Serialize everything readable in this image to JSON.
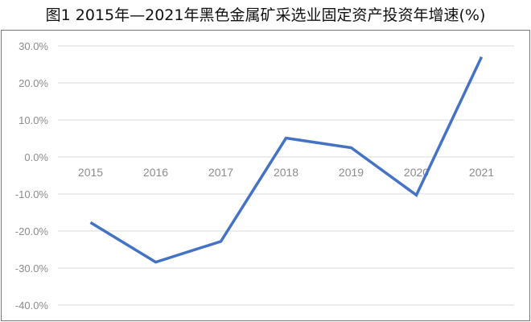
{
  "chart_data": {
    "type": "line",
    "title": "图1  2015年—2021年黑色金属矿采选业固定资产投资年增速(%)",
    "categories": [
      "2015",
      "2016",
      "2017",
      "2018",
      "2019",
      "2020",
      "2021"
    ],
    "series": [
      {
        "values": [
          -17.7,
          -28.4,
          -22.8,
          5.1,
          2.5,
          -10.3,
          27.0
        ],
        "color": "#4472C4"
      }
    ],
    "ylim": [
      -40,
      30
    ],
    "yticks": [
      "30.0%",
      "20.0%",
      "10.0%",
      "0.0%",
      "-10.0%",
      "-20.0%",
      "-30.0%",
      "-40.0%"
    ],
    "ytick_values": [
      30,
      20,
      10,
      0,
      -10,
      -20,
      -30,
      -40
    ],
    "grid": true,
    "gridline_color": "#d9d9d9",
    "tick_label_color": "#8c8c8c",
    "legend": "none"
  }
}
